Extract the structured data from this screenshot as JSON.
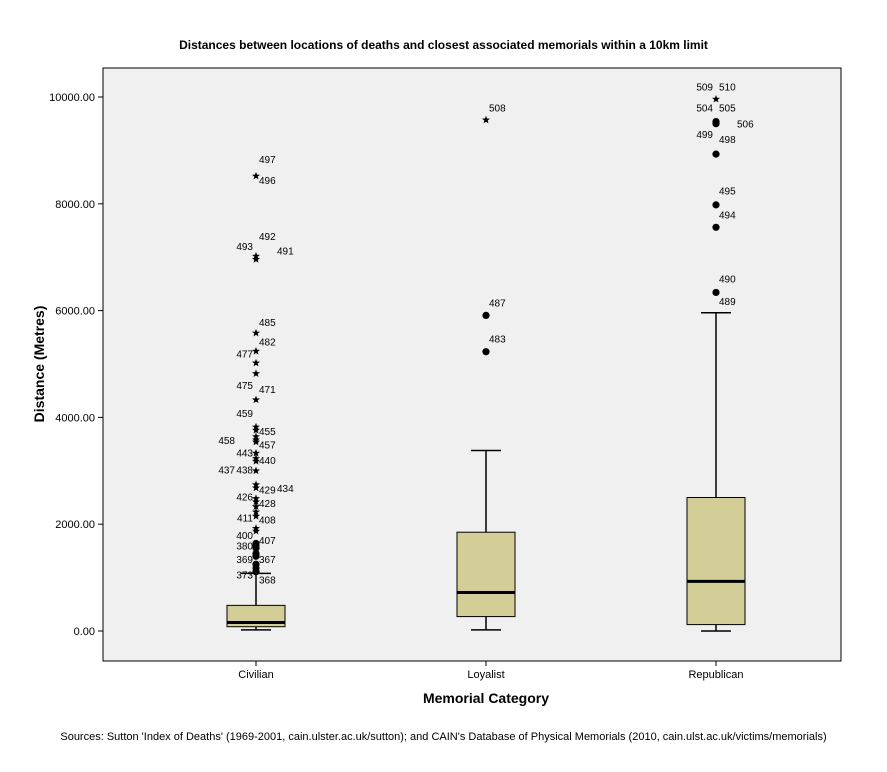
{
  "chart_data": {
    "type": "boxplot",
    "title": "Distances between locations of deaths and closest associated memorials within a 10km limit",
    "xlabel": "Memorial Category",
    "ylabel": "Distance (Metres)",
    "ylim": [
      -550,
      10600
    ],
    "yticks": [
      0,
      2000,
      4000,
      6000,
      8000,
      10000
    ],
    "ytick_labels": [
      "0.00",
      "2000.00",
      "4000.00",
      "6000.00",
      "8000.00",
      "10000.00"
    ],
    "grid": false,
    "background": "#f0f0f0",
    "box_color": "#d3ce97",
    "categories": [
      "Civilian",
      "Loyalist",
      "Republican"
    ],
    "boxes": [
      {
        "category": "Civilian",
        "whisker_low": 20,
        "q1": 80,
        "median": 160,
        "q3": 480,
        "whisker_high": 1080,
        "outliers": [
          {
            "y": 1110,
            "type": "circle"
          },
          {
            "y": 1180,
            "type": "circle"
          },
          {
            "y": 1250,
            "type": "circle"
          },
          {
            "y": 1400,
            "type": "circle"
          },
          {
            "y": 1450,
            "type": "circle"
          },
          {
            "y": 1550,
            "type": "circle"
          },
          {
            "y": 1610,
            "type": "circle"
          },
          {
            "y": 1640,
            "type": "circle"
          },
          {
            "y": 1870,
            "type": "star"
          },
          {
            "y": 1920,
            "type": "star"
          },
          {
            "y": 2150,
            "type": "star"
          },
          {
            "y": 2230,
            "type": "star"
          },
          {
            "y": 2330,
            "type": "star"
          },
          {
            "y": 2420,
            "type": "star"
          },
          {
            "y": 2480,
            "type": "star"
          },
          {
            "y": 2680,
            "type": "star"
          },
          {
            "y": 2740,
            "type": "star"
          },
          {
            "y": 3000,
            "type": "star"
          },
          {
            "y": 3180,
            "type": "star"
          },
          {
            "y": 3230,
            "type": "star"
          },
          {
            "y": 3330,
            "type": "star"
          },
          {
            "y": 3540,
            "type": "star"
          },
          {
            "y": 3580,
            "type": "star"
          },
          {
            "y": 3640,
            "type": "star"
          },
          {
            "y": 3760,
            "type": "star"
          },
          {
            "y": 3820,
            "type": "star"
          },
          {
            "y": 4330,
            "type": "star"
          },
          {
            "y": 4820,
            "type": "star"
          },
          {
            "y": 5020,
            "type": "star"
          },
          {
            "y": 5240,
            "type": "star"
          },
          {
            "y": 5580,
            "type": "star"
          },
          {
            "y": 6960,
            "type": "star"
          },
          {
            "y": 7020,
            "type": "star"
          },
          {
            "y": 8520,
            "type": "star"
          }
        ],
        "labels": [
          {
            "text": "368",
            "y": 960,
            "side": "right"
          },
          {
            "text": "373",
            "y": 1060,
            "side": "left"
          },
          {
            "text": "367",
            "y": 1350,
            "side": "right"
          },
          {
            "text": "369",
            "y": 1350,
            "side": "left"
          },
          {
            "text": "380",
            "y": 1600,
            "side": "left"
          },
          {
            "text": "407",
            "y": 1700,
            "side": "right"
          },
          {
            "text": "400",
            "y": 1800,
            "side": "left"
          },
          {
            "text": "408",
            "y": 2090,
            "side": "right"
          },
          {
            "text": "411",
            "y": 2130,
            "side": "left"
          },
          {
            "text": "428",
            "y": 2400,
            "side": "right"
          },
          {
            "text": "426",
            "y": 2520,
            "side": "left"
          },
          {
            "text": "429",
            "y": 2650,
            "side": "right"
          },
          {
            "text": "434",
            "y": 2680,
            "side": "right2"
          },
          {
            "text": "437",
            "y": 3020,
            "side": "left2"
          },
          {
            "text": "438",
            "y": 3020,
            "side": "left"
          },
          {
            "text": "440",
            "y": 3200,
            "side": "right"
          },
          {
            "text": "443",
            "y": 3340,
            "side": "left"
          },
          {
            "text": "457",
            "y": 3490,
            "side": "right"
          },
          {
            "text": "458",
            "y": 3580,
            "side": "left2"
          },
          {
            "text": "455",
            "y": 3750,
            "side": "right"
          },
          {
            "text": "459",
            "y": 4080,
            "side": "left"
          },
          {
            "text": "471",
            "y": 4530,
            "side": "right"
          },
          {
            "text": "475",
            "y": 4610,
            "side": "left"
          },
          {
            "text": "477",
            "y": 5200,
            "side": "left"
          },
          {
            "text": "482",
            "y": 5420,
            "side": "right"
          },
          {
            "text": "485",
            "y": 5790,
            "side": "right"
          },
          {
            "text": "491",
            "y": 7130,
            "side": "right2"
          },
          {
            "text": "493",
            "y": 7210,
            "side": "left"
          },
          {
            "text": "492",
            "y": 7400,
            "side": "right"
          },
          {
            "text": "496",
            "y": 8450,
            "side": "right"
          },
          {
            "text": "497",
            "y": 8840,
            "side": "right"
          }
        ]
      },
      {
        "category": "Loyalist",
        "whisker_low": 20,
        "q1": 270,
        "median": 720,
        "q3": 1850,
        "whisker_high": 3380,
        "outliers": [
          {
            "y": 5230,
            "type": "circle"
          },
          {
            "y": 5910,
            "type": "circle"
          },
          {
            "y": 9570,
            "type": "star"
          }
        ],
        "labels": [
          {
            "text": "483",
            "y": 5480,
            "side": "right"
          },
          {
            "text": "487",
            "y": 6150,
            "side": "right"
          },
          {
            "text": "508",
            "y": 9800,
            "side": "right"
          }
        ]
      },
      {
        "category": "Republican",
        "whisker_low": 0,
        "q1": 120,
        "median": 930,
        "q3": 2500,
        "whisker_high": 5960,
        "outliers": [
          {
            "y": 6340,
            "type": "circle"
          },
          {
            "y": 7560,
            "type": "circle"
          },
          {
            "y": 7980,
            "type": "circle"
          },
          {
            "y": 8930,
            "type": "circle"
          },
          {
            "y": 9500,
            "type": "circle"
          },
          {
            "y": 9540,
            "type": "circle"
          },
          {
            "y": 9960,
            "type": "star"
          }
        ],
        "labels": [
          {
            "text": "489",
            "y": 6180,
            "side": "right"
          },
          {
            "text": "490",
            "y": 6600,
            "side": "right"
          },
          {
            "text": "494",
            "y": 7800,
            "side": "right"
          },
          {
            "text": "495",
            "y": 8250,
            "side": "right"
          },
          {
            "text": "498",
            "y": 9210,
            "side": "right"
          },
          {
            "text": "499",
            "y": 9310,
            "side": "left"
          },
          {
            "text": "506",
            "y": 9500,
            "side": "right3"
          },
          {
            "text": "504",
            "y": 9800,
            "side": "left"
          },
          {
            "text": "505",
            "y": 9800,
            "side": "right"
          },
          {
            "text": "509",
            "y": 10200,
            "side": "left"
          },
          {
            "text": "510",
            "y": 10200,
            "side": "right"
          }
        ]
      }
    ],
    "source": "Sources:  Sutton 'Index of Deaths' (1969-2001, cain.ulster.ac.uk/sutton); and CAIN's Database of Physical Memorials (2010, cain.ulst.ac.uk/victims/memorials)"
  }
}
